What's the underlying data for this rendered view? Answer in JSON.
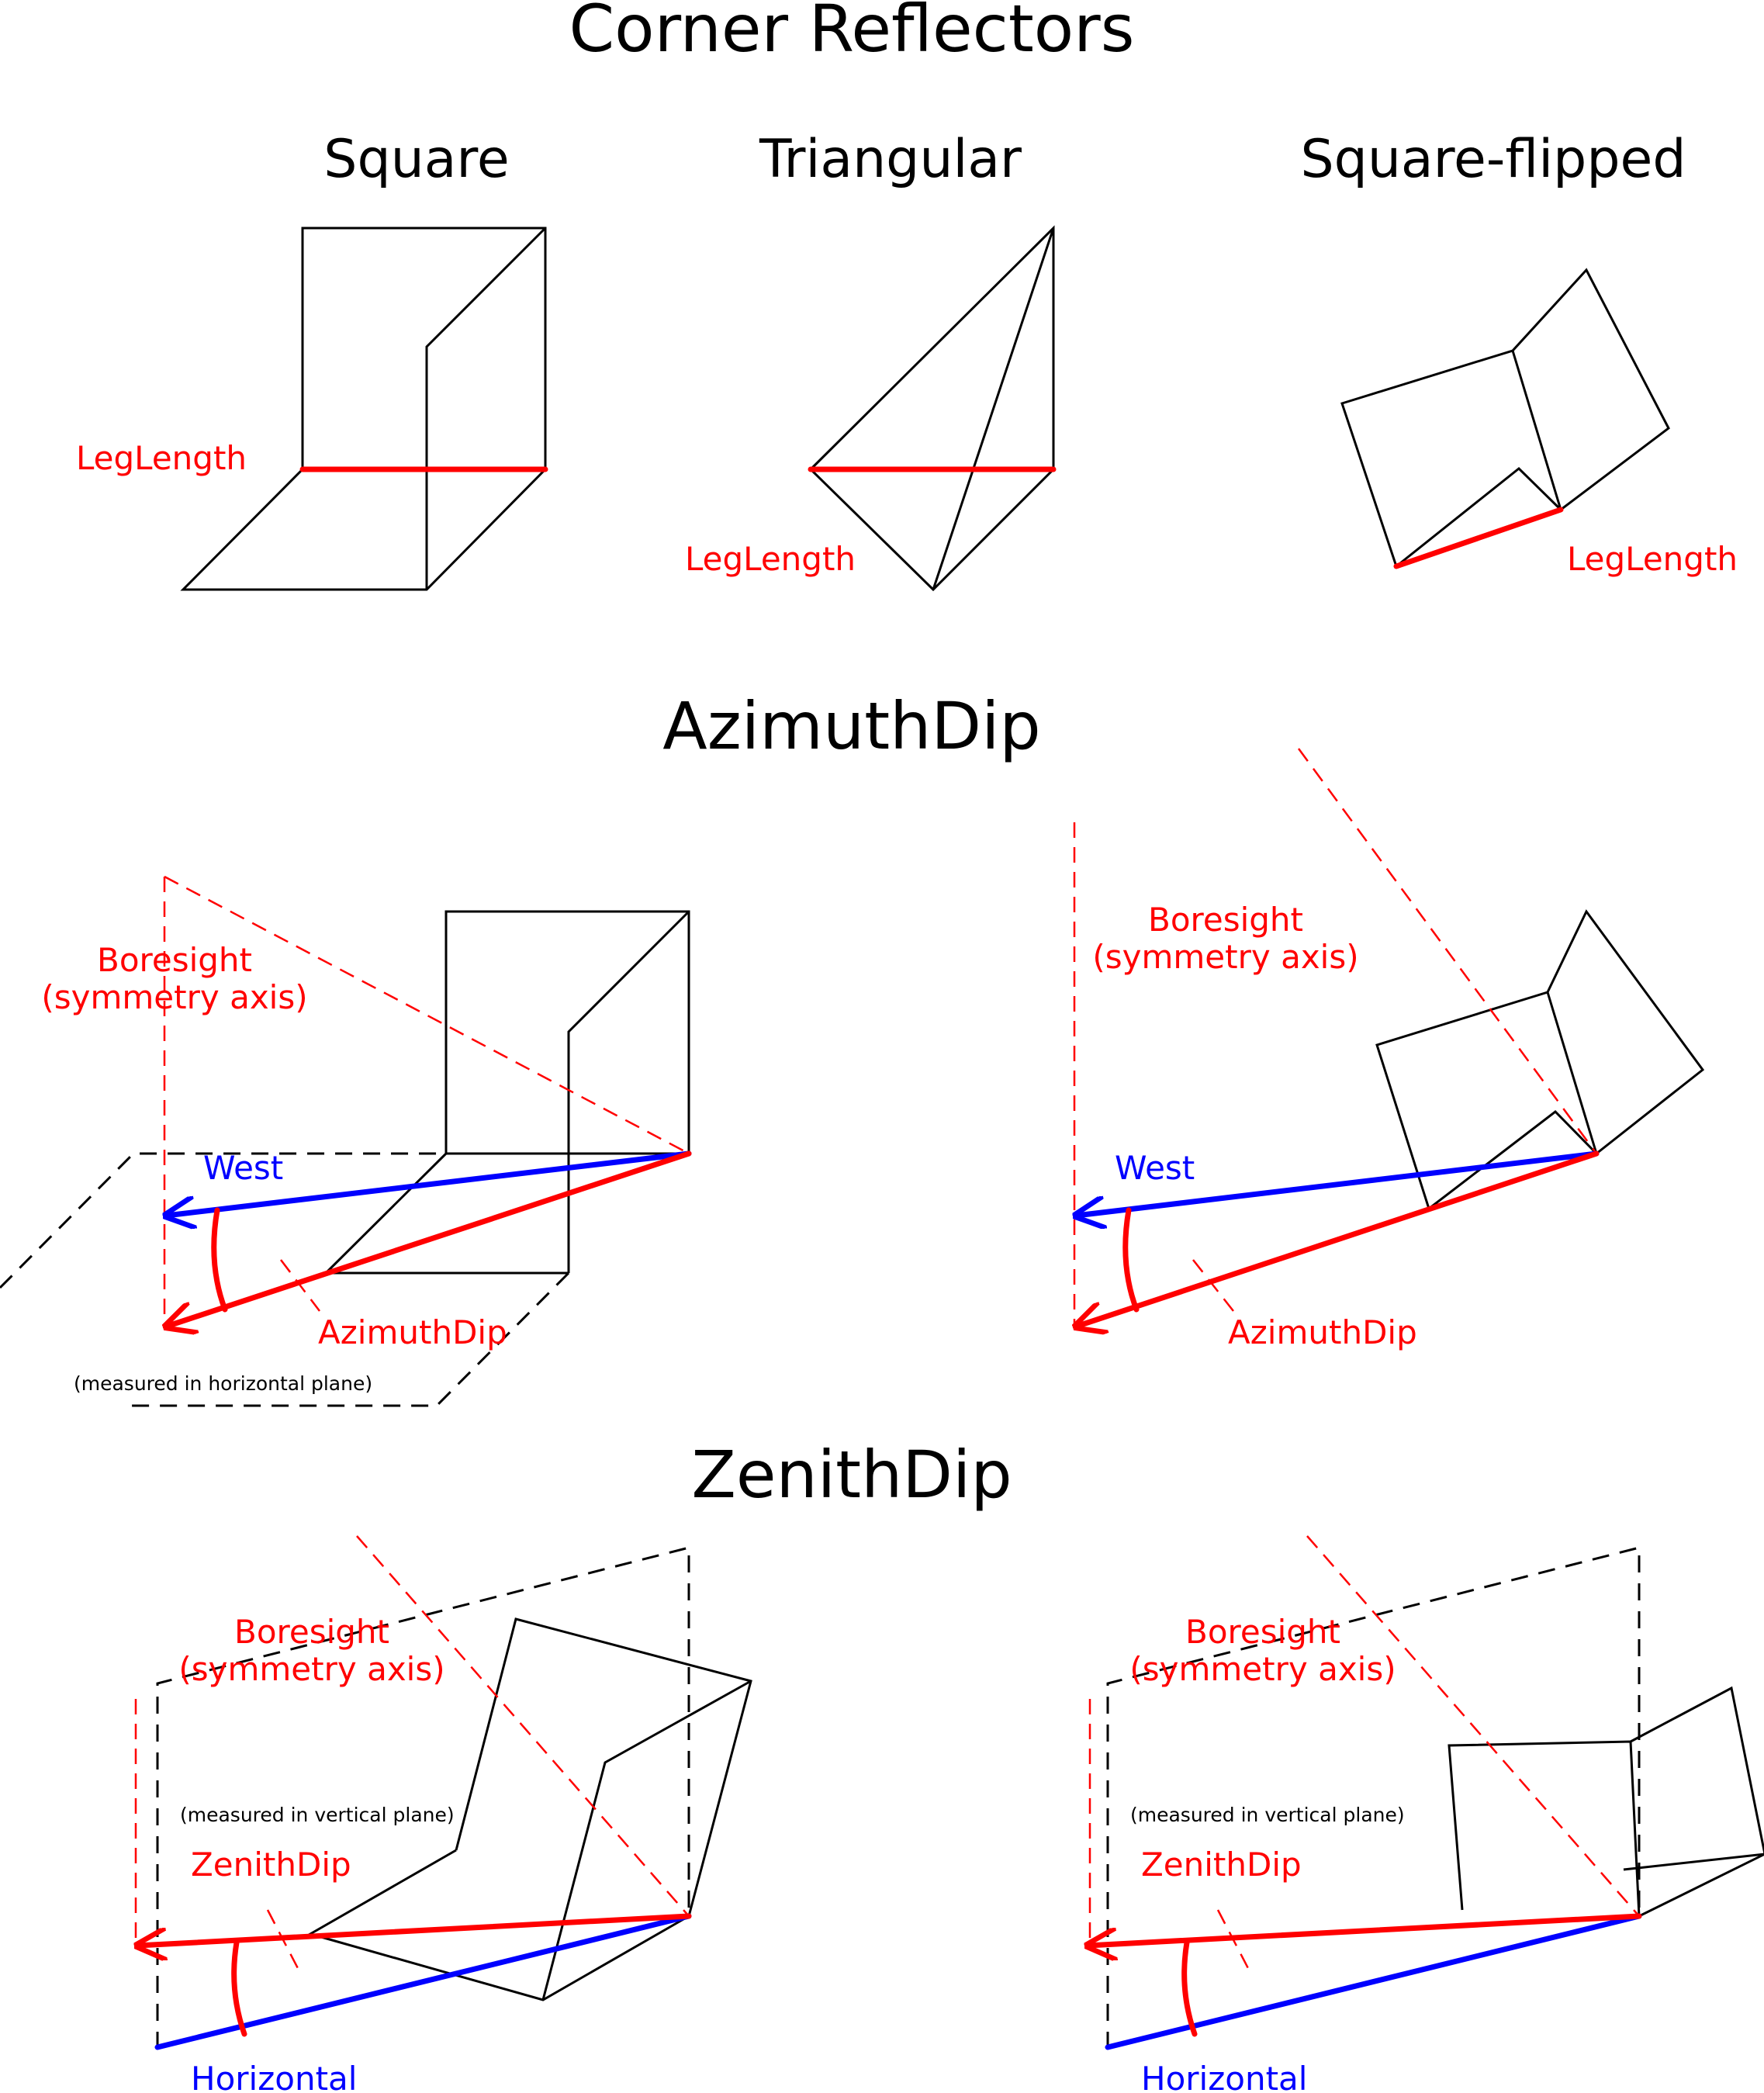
{
  "titles": {
    "corner_reflectors": "Corner Reflectors",
    "azimuth_dip": "AzimuthDip",
    "zenith_dip": "ZenithDip"
  },
  "shapes": {
    "square": "Square",
    "triangular": "Triangular",
    "square_flipped": "Square-flipped"
  },
  "labels": {
    "leg_length": "LegLength",
    "boresight_line1": "Boresight",
    "boresight_line2": "(symmetry axis)",
    "west": "West",
    "azimuth_dip": "AzimuthDip",
    "zenith_dip": "ZenithDip",
    "horizontal": "Horizontal",
    "measured_horizontal": "(measured in horizontal plane)",
    "measured_vertical": "(measured in vertical plane)"
  },
  "colors": {
    "measure": "#ff0000",
    "reference": "#0000ff",
    "outline": "#000000"
  }
}
